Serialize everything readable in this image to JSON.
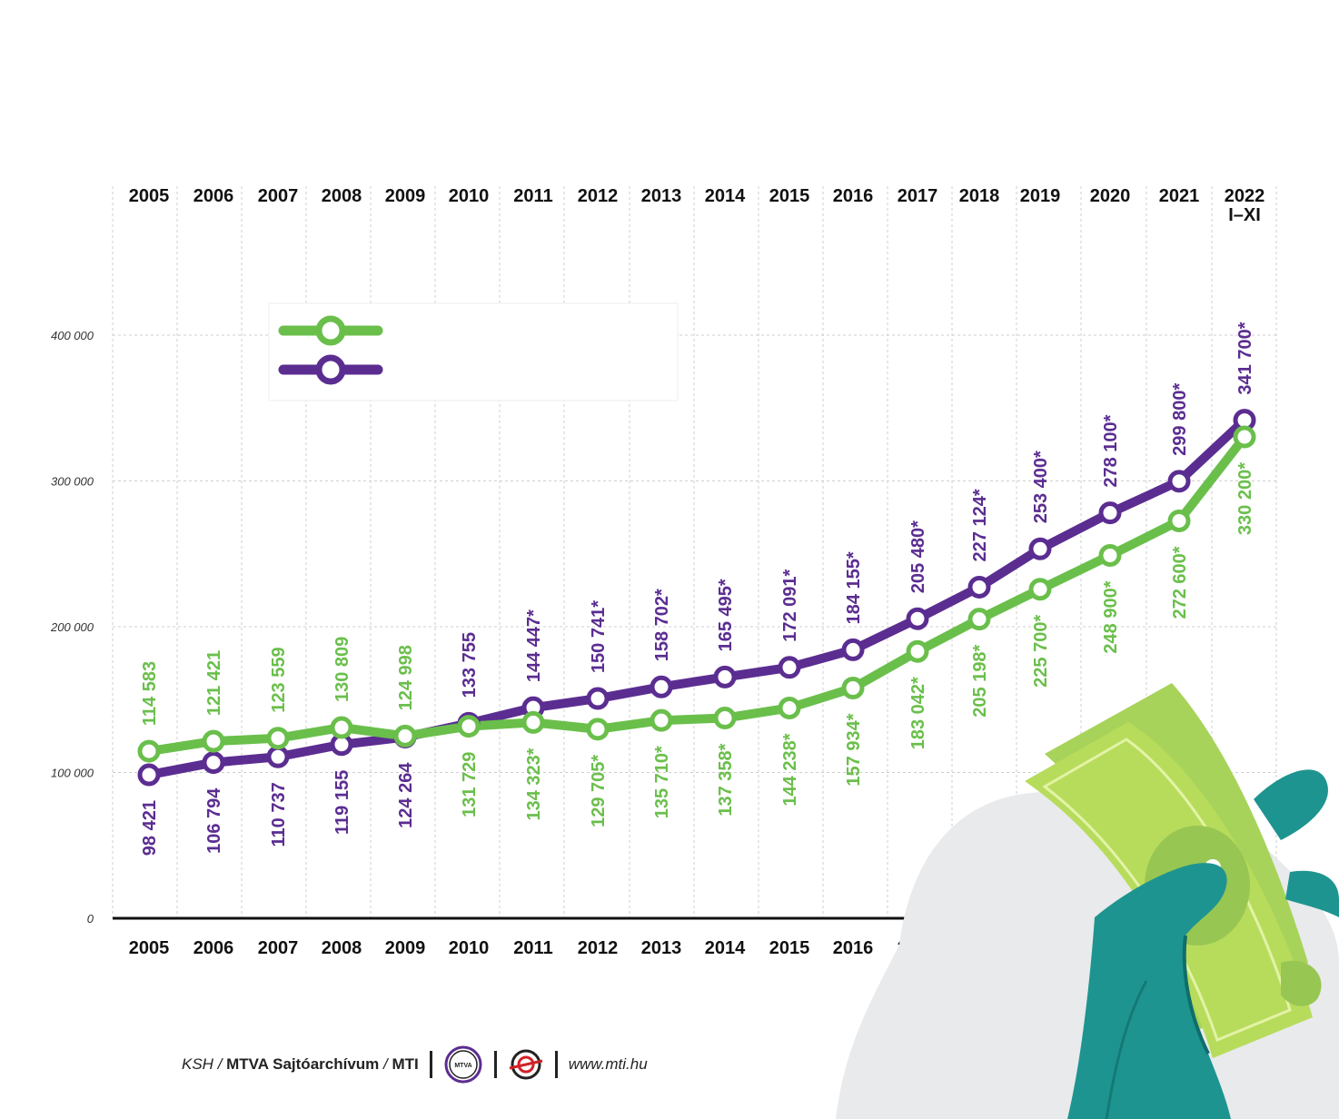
{
  "chart_data": {
    "type": "line",
    "categories": [
      "2005",
      "2006",
      "2007",
      "2008",
      "2009",
      "2010",
      "2011",
      "2012",
      "2013",
      "2014",
      "2015",
      "2016",
      "2017",
      "2018",
      "2019",
      "2020",
      "2021",
      "2022"
    ],
    "category_sublabels": [
      "",
      "",
      "",
      "",
      "",
      "",
      "",
      "",
      "",
      "",
      "",
      "",
      "",
      "",
      "",
      "",
      "",
      "I–XI"
    ],
    "ylim": [
      0,
      400000
    ],
    "yticks": [
      "0",
      "100 000",
      "200 000",
      "300 000",
      "400 000"
    ],
    "grid": true,
    "legend_position": "top-left",
    "series": [
      {
        "color": "#6abf4b",
        "values": [
          114583,
          121421,
          123559,
          130809,
          124998,
          131729,
          134323,
          129705,
          135710,
          137358,
          144238,
          157934,
          183042,
          205198,
          225700,
          248900,
          272600,
          330200
        ],
        "labels": [
          "114 583",
          "121 421",
          "123 559",
          "130 809",
          "124 998",
          "131 729",
          "134 323*",
          "129 705*",
          "135 710*",
          "137 358*",
          "144 238*",
          "157 934*",
          "183 042*",
          "205 198*",
          "225 700*",
          "248 900*",
          "272 600*",
          "330 200*"
        ]
      },
      {
        "color": "#5b2d91",
        "values": [
          98421,
          106794,
          110737,
          119155,
          124264,
          133755,
          144447,
          150741,
          158702,
          165495,
          172091,
          184155,
          205480,
          227124,
          253400,
          278100,
          299800,
          341700
        ],
        "labels": [
          "98 421",
          "106 794",
          "110 737",
          "119 155",
          "124 264",
          "133 755",
          "144 447*",
          "150 741*",
          "158 702*",
          "165 495*",
          "172 091*",
          "184 155*",
          "205 480*",
          "227 124*",
          "253 400*",
          "278 100*",
          "299 800*",
          "341 700*"
        ]
      }
    ]
  },
  "footer": {
    "source_ksh": "KSH",
    "source_mtva": "MTVA Sajtóarchívum",
    "source_mti": "MTI",
    "logo_text": "MTVA",
    "url": "www.mti.hu"
  },
  "icons": {
    "money_hand": "money-hand-illustration"
  }
}
